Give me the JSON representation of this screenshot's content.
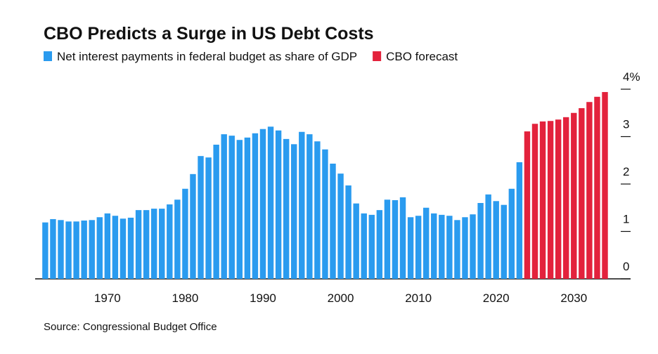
{
  "chart_data": {
    "type": "bar",
    "title": "CBO Predicts a Surge in US Debt Costs",
    "source": "Source: Congressional Budget Office",
    "series": [
      {
        "name": "Net interest payments in federal budget as share of GDP",
        "color": "#2a9bef",
        "x": [
          1962,
          1963,
          1964,
          1965,
          1966,
          1967,
          1968,
          1969,
          1970,
          1971,
          1972,
          1973,
          1974,
          1975,
          1976,
          1977,
          1978,
          1979,
          1980,
          1981,
          1982,
          1983,
          1984,
          1985,
          1986,
          1987,
          1988,
          1989,
          1990,
          1991,
          1992,
          1993,
          1994,
          1995,
          1996,
          1997,
          1998,
          1999,
          2000,
          2001,
          2002,
          2003,
          2004,
          2005,
          2006,
          2007,
          2008,
          2009,
          2010,
          2011,
          2012,
          2013,
          2014,
          2015,
          2016,
          2017,
          2018,
          2019,
          2020,
          2021,
          2022,
          2023
        ],
        "values": [
          1.19,
          1.26,
          1.24,
          1.21,
          1.21,
          1.23,
          1.24,
          1.3,
          1.38,
          1.33,
          1.27,
          1.29,
          1.45,
          1.45,
          1.48,
          1.48,
          1.57,
          1.67,
          1.9,
          2.21,
          2.59,
          2.56,
          2.83,
          3.05,
          3.02,
          2.93,
          2.98,
          3.07,
          3.16,
          3.21,
          3.13,
          2.95,
          2.84,
          3.1,
          3.05,
          2.9,
          2.73,
          2.43,
          2.22,
          1.97,
          1.59,
          1.38,
          1.35,
          1.45,
          1.67,
          1.66,
          1.72,
          1.3,
          1.33,
          1.5,
          1.38,
          1.35,
          1.33,
          1.24,
          1.3,
          1.36,
          1.6,
          1.78,
          1.64,
          1.56,
          1.9,
          2.46
        ]
      },
      {
        "name": "CBO forecast",
        "color": "#e3223c",
        "x": [
          2024,
          2025,
          2026,
          2027,
          2028,
          2029,
          2030,
          2031,
          2032,
          2033,
          2034
        ],
        "values": [
          3.11,
          3.27,
          3.32,
          3.33,
          3.36,
          3.41,
          3.5,
          3.6,
          3.73,
          3.84,
          3.94
        ]
      }
    ],
    "xlim": [
      1960.7,
      2037.3
    ],
    "xticks": [
      1970,
      1980,
      1990,
      2000,
      2010,
      2020,
      2030
    ],
    "ylim": [
      0,
      4
    ],
    "yticks": [
      0,
      1,
      2,
      3,
      {
        "value": 4,
        "label": "4%"
      }
    ]
  }
}
